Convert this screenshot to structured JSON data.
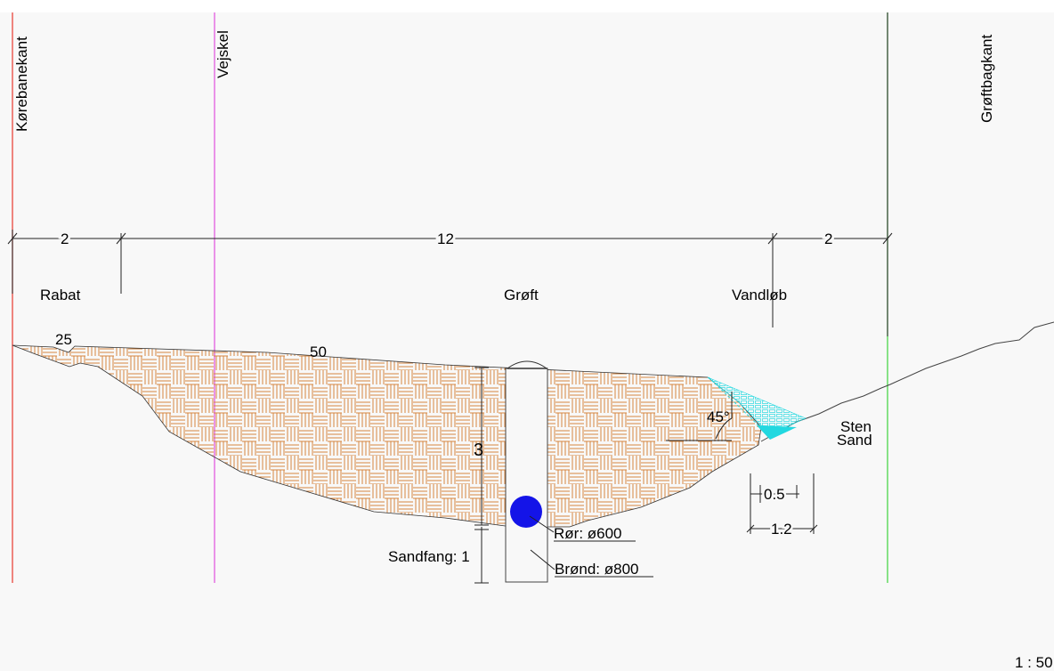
{
  "colors": {
    "background": "#f8f8f8",
    "korebanekant_line": "#e8463c",
    "vejskel_line": "#e25be0",
    "groftbagkant_line": "#4cd64a",
    "hatch": "#d6863f",
    "water": "#22d8e0",
    "pipe": "#1414e8",
    "ink": "#000000"
  },
  "vertical_labels": {
    "korebanekant": "Kørebanekant",
    "vejskel": "Vejskel",
    "groftbagkant": "Grøftbagkant"
  },
  "dimensions": {
    "rabat_width": "2",
    "groft_width": "12",
    "vandlob_width": "2",
    "depth": "3",
    "sandfang": "Sandfang: 1",
    "bottom_inner": "0.5",
    "bottom_outer": "1.2",
    "slope_left": "25",
    "slope_mid": "50",
    "angle": "45°"
  },
  "zones": {
    "rabat": "Rabat",
    "groft": "Grøft",
    "vandlob": "Vandløb"
  },
  "materials": {
    "sten": "Sten",
    "sand": "Sand"
  },
  "components": {
    "pipe": "Rør: ø600",
    "well": "Brønd: ø800"
  },
  "scale": "1 : 50"
}
